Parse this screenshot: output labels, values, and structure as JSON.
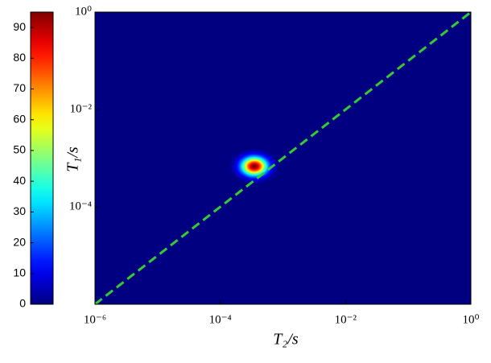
{
  "chart_data": {
    "type": "heatmap",
    "xlabel": "T₂/s",
    "ylabel": "T₁/s",
    "xscale": "log",
    "yscale": "log",
    "xlim": [
      1e-06,
      1
    ],
    "ylim": [
      1e-06,
      1
    ],
    "xticks": [
      {
        "value": 1e-06,
        "label": "10⁻⁶"
      },
      {
        "value": 0.0001,
        "label": "10⁻⁴"
      },
      {
        "value": 0.01,
        "label": "10⁻²"
      },
      {
        "value": 1,
        "label": "10⁰"
      }
    ],
    "yticks": [
      {
        "value": 0.0001,
        "label": "10⁻⁴"
      },
      {
        "value": 0.01,
        "label": "10⁻²"
      },
      {
        "value": 1,
        "label": "10⁰"
      }
    ],
    "colormap": "jet",
    "clim": [
      0,
      95
    ],
    "cticks": [
      0,
      10,
      20,
      30,
      40,
      50,
      60,
      70,
      80,
      90
    ],
    "peaks": [
      {
        "x": 0.00035,
        "y": 0.00068,
        "value": 95,
        "x_spread_decades": 0.14,
        "y_spread_decades": 0.13
      }
    ],
    "diagonal": {
      "color": "#33cc33",
      "dashed": true
    }
  }
}
